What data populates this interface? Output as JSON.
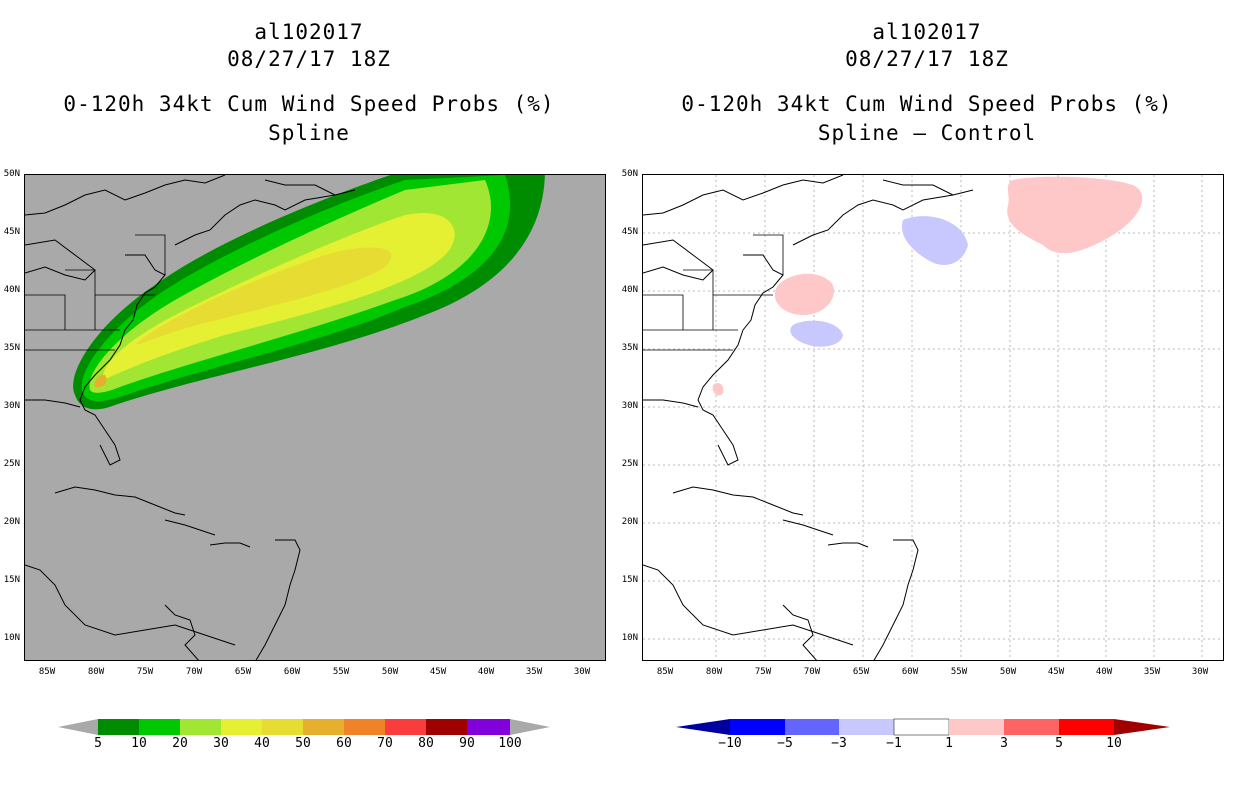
{
  "left_panel": {
    "storm_id": "al102017",
    "datetime": "08/27/17 18Z",
    "product": "0-120h 34kt Cum Wind Speed Probs (%)",
    "scheme": "Spline",
    "background_color": "#a9a9a9"
  },
  "right_panel": {
    "storm_id": "al102017",
    "datetime": "08/27/17 18Z",
    "product": "0-120h 34kt Cum Wind Speed Probs (%)",
    "scheme": "Spline – Control",
    "background_color": "#ffffff"
  },
  "latitude_labels": [
    "50N",
    "45N",
    "40N",
    "35N",
    "30N",
    "25N",
    "20N",
    "15N",
    "10N"
  ],
  "longitude_labels": [
    "85W",
    "80W",
    "75W",
    "70W",
    "65W",
    "60W",
    "55W",
    "50W",
    "45W",
    "40W",
    "35W",
    "30W"
  ],
  "left_colorbar": {
    "labels": [
      "5",
      "10",
      "20",
      "30",
      "40",
      "50",
      "60",
      "70",
      "80",
      "90",
      "100"
    ],
    "colors": [
      "#008c00",
      "#00c800",
      "#00e600",
      "#a0e632",
      "#e6f032",
      "#e6dc32",
      "#e6af2d",
      "#f08228",
      "#fa3c3c",
      "#a00000",
      "#8200dc",
      "#a9a9a9"
    ],
    "end_arrow_color": "#a9a9a9"
  },
  "right_colorbar": {
    "labels": [
      "−10",
      "−5",
      "−3",
      "−1",
      "1",
      "3",
      "5",
      "10"
    ],
    "colors": [
      "#0000a0",
      "#0000ff",
      "#6464ff",
      "#c8c8ff",
      "#ffffff",
      "#ffc8c8",
      "#ff6464",
      "#ff0000",
      "#a00000"
    ]
  }
}
